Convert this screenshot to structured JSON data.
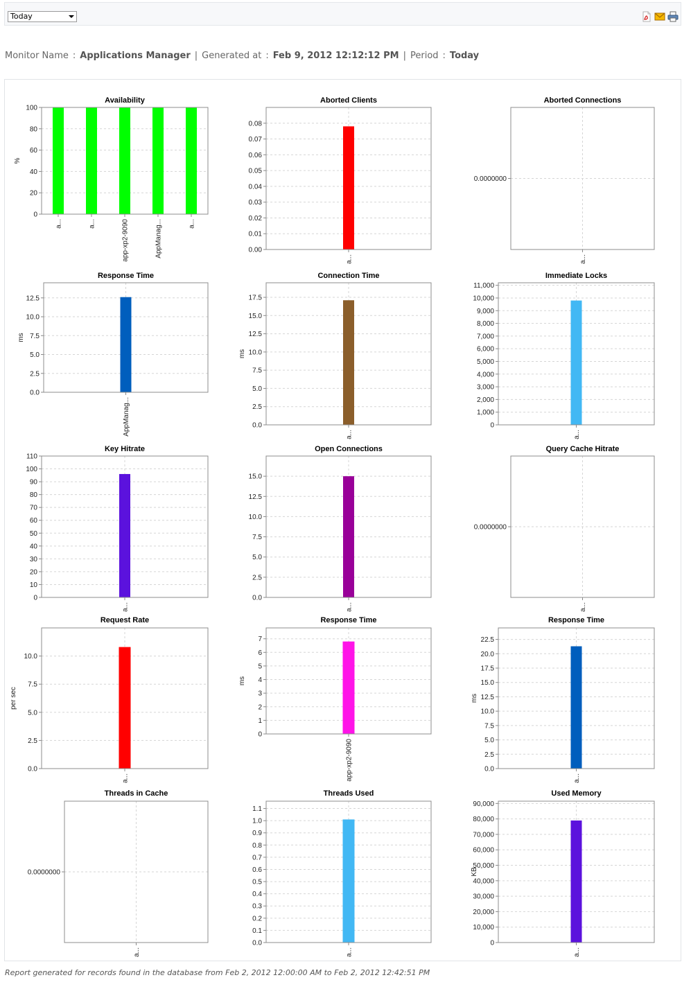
{
  "toolbar": {
    "period_selected": "Today",
    "icons": [
      "pdf-icon",
      "email-icon",
      "print-icon"
    ]
  },
  "info": {
    "monitor_label": "Monitor Name",
    "monitor_value": "Applications Manager",
    "generated_label": "Generated at",
    "generated_value": "Feb 9, 2012 12:12:12 PM",
    "period_label": "Period",
    "period_value": "Today",
    "colon": ":",
    "pipe": "|"
  },
  "chart_data": [
    {
      "type": "bar",
      "title": "Availability",
      "ylabel": "%",
      "ylim": [
        0,
        100
      ],
      "yticks": [
        "0",
        "20",
        "40",
        "60",
        "80",
        "100"
      ],
      "categories": [
        "a...",
        "a...",
        "app-xp2-9090",
        "AppManag...",
        "a..."
      ],
      "values": [
        100,
        100,
        100,
        100,
        100
      ],
      "color": "#00ff00",
      "grid": true
    },
    {
      "type": "bar",
      "title": "Aborted Clients",
      "ylabel": "",
      "ylim": [
        0,
        0.09
      ],
      "yticks": [
        "0.00",
        "0.01",
        "0.02",
        "0.03",
        "0.04",
        "0.05",
        "0.06",
        "0.07",
        "0.08"
      ],
      "categories": [
        "a..."
      ],
      "values": [
        0.078
      ],
      "color": "#ff0000",
      "grid": true
    },
    {
      "type": "bar",
      "title": "Aborted Connections",
      "ylabel": "",
      "ylim": [
        -1,
        1
      ],
      "yticks": [
        "0.0000000"
      ],
      "categories": [
        "a..."
      ],
      "values": [
        0
      ],
      "color": "#ff0000",
      "grid": true
    },
    {
      "type": "bar",
      "title": "Response Time",
      "ylabel": "ms",
      "ylim": [
        0,
        14.5
      ],
      "yticks": [
        "0.0",
        "2.5",
        "5.0",
        "7.5",
        "10.0",
        "12.5"
      ],
      "categories": [
        "AppManag..."
      ],
      "values": [
        12.6
      ],
      "color": "#005ebd",
      "grid": true
    },
    {
      "type": "bar",
      "title": "Connection Time",
      "ylabel": "ms",
      "ylim": [
        0,
        19.5
      ],
      "yticks": [
        "0.0",
        "2.5",
        "5.0",
        "7.5",
        "10.0",
        "12.5",
        "15.0",
        "17.5"
      ],
      "categories": [
        "a..."
      ],
      "values": [
        17.1
      ],
      "color": "#8b5e2b",
      "grid": true
    },
    {
      "type": "bar",
      "title": "Immediate Locks",
      "ylabel": "",
      "ylim": [
        0,
        11200
      ],
      "yticks": [
        "0",
        "1,000",
        "2,000",
        "3,000",
        "4,000",
        "5,000",
        "6,000",
        "7,000",
        "8,000",
        "9,000",
        "10,000",
        "11,000"
      ],
      "categories": [
        "a..."
      ],
      "values": [
        9800
      ],
      "color": "#42b8f4",
      "grid": true
    },
    {
      "type": "bar",
      "title": "Key Hitrate",
      "ylabel": "",
      "ylim": [
        0,
        110
      ],
      "yticks": [
        "0",
        "10",
        "20",
        "30",
        "40",
        "50",
        "60",
        "70",
        "80",
        "90",
        "100",
        "110"
      ],
      "categories": [
        "a..."
      ],
      "values": [
        96
      ],
      "color": "#5b12dd",
      "grid": true
    },
    {
      "type": "bar",
      "title": "Open Connections",
      "ylabel": "",
      "ylim": [
        0,
        17.5
      ],
      "yticks": [
        "0.0",
        "2.5",
        "5.0",
        "7.5",
        "10.0",
        "12.5",
        "15.0"
      ],
      "categories": [
        "a..."
      ],
      "values": [
        15
      ],
      "color": "#990099",
      "grid": true
    },
    {
      "type": "bar",
      "title": "Query Cache Hitrate",
      "ylabel": "",
      "ylim": [
        -1,
        1
      ],
      "yticks": [
        "0.0000000"
      ],
      "categories": [
        "a..."
      ],
      "values": [
        0
      ],
      "color": "#5b12dd",
      "grid": true
    },
    {
      "type": "bar",
      "title": "Request Rate",
      "ylabel": "per sec",
      "ylim": [
        0,
        12.5
      ],
      "yticks": [
        "0.0",
        "2.5",
        "5.0",
        "7.5",
        "10.0"
      ],
      "categories": [
        "a..."
      ],
      "values": [
        10.8
      ],
      "color": "#ff0000",
      "grid": true
    },
    {
      "type": "bar",
      "title": "Response Time",
      "ylabel": "ms",
      "ylim": [
        0,
        7.8
      ],
      "yticks": [
        "0",
        "1",
        "2",
        "3",
        "4",
        "5",
        "6",
        "7"
      ],
      "categories": [
        "app-xp2-9090"
      ],
      "values": [
        6.8
      ],
      "color": "#ff14e8",
      "grid": true
    },
    {
      "type": "bar",
      "title": "Response Time",
      "ylabel": "ms",
      "ylim": [
        0,
        24.5
      ],
      "yticks": [
        "0.0",
        "2.5",
        "5.0",
        "7.5",
        "10.0",
        "12.5",
        "15.0",
        "17.5",
        "20.0",
        "22.5"
      ],
      "categories": [
        "a..."
      ],
      "values": [
        21.3
      ],
      "color": "#005ebd",
      "grid": true
    },
    {
      "type": "bar",
      "title": "Threads in Cache",
      "ylabel": "",
      "ylim": [
        -1,
        1
      ],
      "yticks": [
        "0.0000000"
      ],
      "categories": [
        "a..."
      ],
      "values": [
        0
      ],
      "color": "#42b8f4",
      "grid": true
    },
    {
      "type": "bar",
      "title": "Threads Used",
      "ylabel": "",
      "ylim": [
        0,
        1.16
      ],
      "yticks": [
        "0.0",
        "0.1",
        "0.2",
        "0.3",
        "0.4",
        "0.5",
        "0.6",
        "0.7",
        "0.8",
        "0.9",
        "1.0",
        "1.1"
      ],
      "categories": [
        "a..."
      ],
      "values": [
        1.01
      ],
      "color": "#42b8f4",
      "grid": true
    },
    {
      "type": "bar",
      "title": "Used Memory",
      "ylabel": "KB",
      "ylim": [
        0,
        91500
      ],
      "yticks": [
        "0",
        "10,000",
        "20,000",
        "30,000",
        "40,000",
        "50,000",
        "60,000",
        "70,000",
        "80,000",
        "90,000"
      ],
      "categories": [
        "a..."
      ],
      "values": [
        79000
      ],
      "color": "#5b12dd",
      "grid": true
    }
  ],
  "footer": {
    "note": "Report generated for records found in the database from Feb 2, 2012 12:00:00 AM to Feb 2, 2012 12:42:51 PM"
  }
}
